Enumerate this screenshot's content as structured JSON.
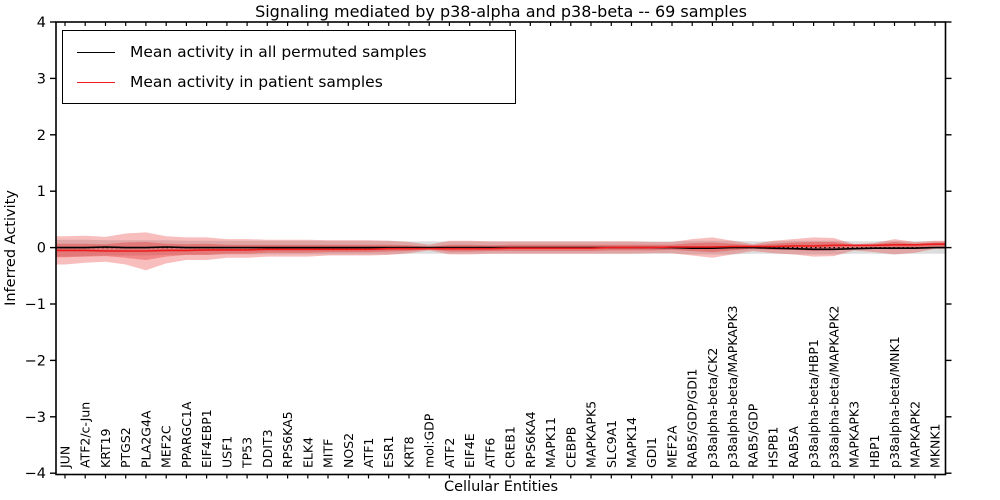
{
  "figure": {
    "title": "Signaling mediated by p38-alpha and p38-beta -- 69 samples"
  },
  "axes": {
    "xlabel": "Cellular Entities",
    "ylabel": "Inferred Activity",
    "ylim": [
      -4,
      4
    ],
    "ytick_values": [
      4,
      3,
      2,
      1,
      0,
      -1,
      -2,
      -3,
      -4
    ],
    "ytick_labels": [
      "4",
      "3",
      "2",
      "1",
      "0",
      "−1",
      "−2",
      "−3",
      "−4"
    ],
    "grid": false
  },
  "legend": {
    "position": "upper-left",
    "items": [
      {
        "label": "Mean activity in all permuted samples",
        "color": "#000000"
      },
      {
        "label": "Mean activity in patient samples",
        "color": "#ee1c1c"
      }
    ]
  },
  "chart_data": {
    "type": "line",
    "title": "Signaling mediated by p38-alpha and p38-beta -- 69 samples",
    "xlabel": "Cellular Entities",
    "ylabel": "Inferred Activity",
    "ylim": [
      -4,
      4
    ],
    "zero_line": 0,
    "legend_position": "upper-left",
    "categories": [
      "JUN",
      "ATF2/c-Jun",
      "KRT19",
      "PTGS2",
      "PLA2G4A",
      "MEF2C",
      "PPARGC1A",
      "EIF4EBP1",
      "USF1",
      "TP53",
      "DDIT3",
      "RPS6KA5",
      "ELK4",
      "MITF",
      "NOS2",
      "ATF1",
      "ESR1",
      "KRT8",
      "mol:GDP",
      "ATF2",
      "EIF4E",
      "ATF6",
      "CREB1",
      "RPS6KA4",
      "MAPK11",
      "CEBPB",
      "MAPKAPK5",
      "SLC9A1",
      "MAPK14",
      "GDI1",
      "MEF2A",
      "RAB5/GDP/GDI1",
      "p38alpha-beta/CK2",
      "p38alpha-beta/MAPKAPK3",
      "RAB5/GDP",
      "HSPB1",
      "RAB5A",
      "p38alpha-beta/HBP1",
      "p38alpha-beta/MAPKAPK2",
      "MAPKAPK3",
      "HBP1",
      "p38alpha-beta/MNK1",
      "MAPKAPK2",
      "MKNK1"
    ],
    "series": [
      {
        "name": "Mean activity in all permuted samples",
        "color": "#000000",
        "values": [
          0,
          0,
          0.01,
          0,
          0,
          0.01,
          0,
          0,
          0,
          0,
          0,
          0,
          0,
          0,
          0,
          0,
          0,
          0,
          0,
          0,
          0,
          0,
          0,
          0,
          0,
          0,
          0,
          0,
          0,
          0,
          0,
          -0.01,
          -0.01,
          0,
          0,
          -0.01,
          -0.02,
          -0.03,
          -0.03,
          -0.02,
          -0.01,
          -0.01,
          -0.01,
          0
        ]
      },
      {
        "name": "Mean activity in patient samples",
        "color": "#ee1c1c",
        "values": [
          -0.05,
          -0.05,
          -0.06,
          -0.06,
          -0.06,
          -0.05,
          -0.05,
          -0.04,
          -0.04,
          -0.04,
          -0.03,
          -0.03,
          -0.03,
          -0.03,
          -0.03,
          -0.03,
          -0.02,
          -0.02,
          -0.02,
          -0.02,
          -0.02,
          -0.02,
          -0.01,
          -0.01,
          -0.01,
          -0.01,
          -0.01,
          0,
          0,
          0,
          0.01,
          0.01,
          0.01,
          0.02,
          0.02,
          0.02,
          0.03,
          0.03,
          0.04,
          0.04,
          0.04,
          0.05,
          0.05,
          0.06
        ]
      }
    ],
    "bands": [
      {
        "name": "permuted-samples-spread",
        "color": "rgba(150,150,150,0.32)",
        "hi": [
          0.14,
          0.14,
          0.13,
          0.13,
          0.13,
          0.13,
          0.12,
          0.12,
          0.12,
          0.12,
          0.12,
          0.12,
          0.12,
          0.12,
          0.12,
          0.12,
          0.12,
          0.11,
          0.11,
          0.11,
          0.11,
          0.11,
          0.11,
          0.11,
          0.11,
          0.11,
          0.11,
          0.11,
          0.11,
          0.11,
          0.11,
          0.12,
          0.12,
          0.12,
          0.11,
          0.11,
          0.12,
          0.12,
          0.12,
          0.11,
          0.11,
          0.12,
          0.11,
          0.11
        ],
        "lo": [
          -0.16,
          -0.15,
          -0.14,
          -0.14,
          -0.14,
          -0.13,
          -0.13,
          -0.13,
          -0.12,
          -0.12,
          -0.12,
          -0.12,
          -0.12,
          -0.12,
          -0.12,
          -0.12,
          -0.12,
          -0.11,
          -0.11,
          -0.11,
          -0.11,
          -0.11,
          -0.11,
          -0.11,
          -0.11,
          -0.11,
          -0.11,
          -0.11,
          -0.11,
          -0.11,
          -0.11,
          -0.12,
          -0.12,
          -0.12,
          -0.11,
          -0.11,
          -0.12,
          -0.12,
          -0.12,
          -0.11,
          -0.11,
          -0.12,
          -0.11,
          -0.11
        ]
      },
      {
        "name": "patient-samples-spread",
        "color": "rgba(232,36,36,0.30)",
        "hi": [
          0.2,
          0.21,
          0.19,
          0.25,
          0.27,
          0.2,
          0.18,
          0.18,
          0.15,
          0.15,
          0.14,
          0.14,
          0.14,
          0.13,
          0.13,
          0.13,
          0.12,
          0.1,
          0.05,
          0.12,
          0.12,
          0.11,
          0.11,
          0.11,
          0.11,
          0.11,
          0.11,
          0.11,
          0.11,
          0.1,
          0.1,
          0.15,
          0.18,
          0.12,
          0.06,
          0.12,
          0.15,
          0.18,
          0.17,
          0.06,
          0.08,
          0.15,
          0.1,
          0.12
        ],
        "lo": [
          -0.3,
          -0.27,
          -0.25,
          -0.3,
          -0.4,
          -0.28,
          -0.22,
          -0.22,
          -0.18,
          -0.18,
          -0.16,
          -0.16,
          -0.16,
          -0.14,
          -0.14,
          -0.14,
          -0.13,
          -0.1,
          -0.05,
          -0.12,
          -0.12,
          -0.11,
          -0.11,
          -0.11,
          -0.11,
          -0.11,
          -0.11,
          -0.11,
          -0.11,
          -0.1,
          -0.1,
          -0.14,
          -0.18,
          -0.12,
          -0.06,
          -0.1,
          -0.12,
          -0.16,
          -0.15,
          -0.05,
          -0.08,
          -0.12,
          -0.09,
          -0.02
        ]
      },
      {
        "name": "patient-samples-spread-inner",
        "color": "rgba(232,36,36,0.34)",
        "hi": [
          0.07,
          0.07,
          0.06,
          0.09,
          0.1,
          0.07,
          0.06,
          0.07,
          0.05,
          0.05,
          0.05,
          0.05,
          0.05,
          0.05,
          0.05,
          0.05,
          0.05,
          0.04,
          0.01,
          0.05,
          0.05,
          0.04,
          0.05,
          0.05,
          0.05,
          0.05,
          0.05,
          0.05,
          0.05,
          0.05,
          0.05,
          0.08,
          0.09,
          0.07,
          0.04,
          0.07,
          0.09,
          0.1,
          0.1,
          0.05,
          0.06,
          0.1,
          0.07,
          0.09
        ],
        "lo": [
          -0.17,
          -0.16,
          -0.15,
          -0.18,
          -0.22,
          -0.16,
          -0.13,
          -0.13,
          -0.11,
          -0.11,
          -0.09,
          -0.09,
          -0.09,
          -0.08,
          -0.08,
          -0.08,
          -0.07,
          -0.06,
          -0.03,
          -0.07,
          -0.07,
          -0.06,
          -0.06,
          -0.06,
          -0.06,
          -0.06,
          -0.06,
          -0.05,
          -0.05,
          -0.05,
          -0.04,
          -0.06,
          -0.08,
          -0.05,
          -0.02,
          -0.04,
          -0.04,
          -0.06,
          -0.05,
          0,
          -0.02,
          -0.03,
          -0.02,
          0.02
        ]
      }
    ]
  }
}
